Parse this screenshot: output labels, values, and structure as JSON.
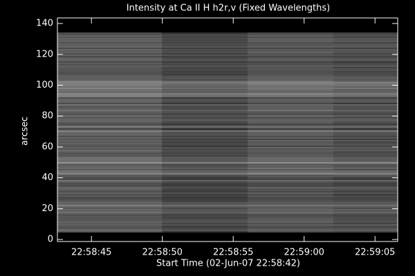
{
  "chart_data": {
    "type": "image",
    "title": "Intensity at Ca II H h2r,v (Fixed Wavelengths)",
    "x_label": "Start Time (02-Jun-07 22:58:42)",
    "y_label": "arcsec",
    "xlim": [
      0.6,
      24.6
    ],
    "xticks": [
      {
        "value": 3,
        "label": "22:58:45"
      },
      {
        "value": 8,
        "label": "22:58:50"
      },
      {
        "value": 13,
        "label": "22:58:55"
      },
      {
        "value": 18,
        "label": "22:59:00"
      },
      {
        "value": 23,
        "label": "22:59:05"
      }
    ],
    "ylim": [
      -1.3,
      143.6
    ],
    "yticks": [
      0,
      20,
      40,
      60,
      80,
      100,
      120,
      140
    ],
    "color": "#ffffff",
    "background": "#000000"
  }
}
